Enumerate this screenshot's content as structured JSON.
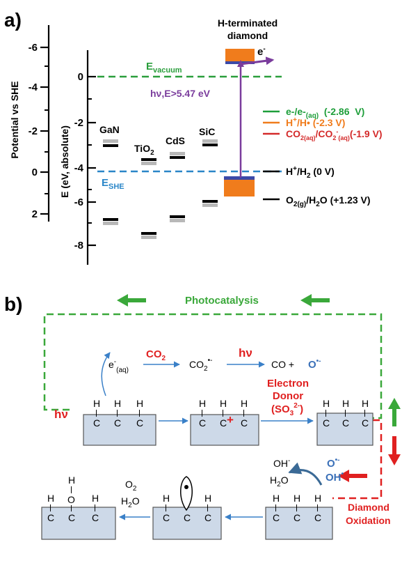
{
  "panel_a": {
    "label": "a)",
    "left_axis_title": "Potential vs SHE",
    "left_axis_ticks": [
      "-6",
      "-4",
      "-2",
      "0",
      "2"
    ],
    "right_axis_title": "E (eV, absolute)",
    "right_axis_ticks": [
      "0",
      "-2",
      "-4",
      "-6",
      "-8"
    ],
    "evacuum": {
      "main": "E",
      "sub": "vacuum"
    },
    "eshe": {
      "main": "E",
      "sub": "SHE"
    },
    "diamond_title_line1": "H-terminated",
    "diamond_title_line2": "diamond",
    "electron": {
      "main": "e",
      "sup": "-"
    },
    "excitation": "hν,E>5.47 eV",
    "materials": [
      "GaN",
      "TiO2",
      "CdS",
      "SiC"
    ],
    "tio2": {
      "main": "TiO",
      "sub": "2"
    },
    "legend": [
      {
        "text": "e-/e-(aq)  (-2.86  V)",
        "color": "#1e9e3a"
      },
      {
        "text": "H+/H• (-2.3 V)",
        "color": "#f07c1c"
      },
      {
        "text": "CO2(aq)/CO2-(aq)(-1.9 V)",
        "color": "#d42a2a"
      }
    ],
    "legend_e": {
      "a": "e-/e-",
      "sub": "(aq)",
      "b": "  (-2.86  V)"
    },
    "legend_h": {
      "a": "H",
      "sup": "+",
      "b": "/H• (-2.3 V)"
    },
    "legend_co2": {
      "a": "CO",
      "s1": "2(aq)",
      "b": "/CO",
      "s2": "2",
      "sup": "-",
      "s3": "(aq)",
      "c": "(-1.9 V)"
    },
    "hplus": {
      "a": "H",
      "sup": "+",
      "b": "/H",
      "sub": "2",
      "c": " (0 V)"
    },
    "o2": {
      "a": "O",
      "sub": "2(g)",
      "b": "/H",
      "sub2": "2",
      "c": "O (+1.23 V)"
    },
    "colors": {
      "green": "#2a9e3c",
      "blue": "#2a86c8",
      "purple": "#7a3c9c",
      "orange": "#f07c1c",
      "red": "#e02020",
      "box": "#cdd9e8"
    }
  },
  "panel_b": {
    "label": "b)",
    "photocatalysis": "Photocatalysis",
    "hv": "hν",
    "eaq": {
      "main": "e",
      "sup": "-",
      "sub": "(aq)"
    },
    "co2": {
      "main": "CO",
      "sub": "2"
    },
    "co2minus": {
      "main": "CO",
      "sub": "2",
      "sup": "•-"
    },
    "co": "CO +",
    "o_radical": {
      "main": "O",
      "sup": "•-"
    },
    "electron_donor_1": "Electron",
    "electron_donor_2": "Donor",
    "electron_donor_3": {
      "a": "(SO",
      "sub": "3",
      "sup": "2-",
      "b": ")"
    },
    "ohminus": {
      "main": "OH",
      "sup": "-"
    },
    "h2o": {
      "main": "H",
      "sub": "2",
      "b": "O"
    },
    "o_radical2": {
      "main": "O",
      "sup": "•-"
    },
    "oh_radical": {
      "main": "OH",
      "sup": "•"
    },
    "o2": {
      "main": "O",
      "sub": "2"
    },
    "h2o_2": {
      "main": "H",
      "sub": "2",
      "b": "O"
    },
    "diamond_oxidation_1": "Diamond",
    "diamond_oxidation_2": "Oxidation",
    "H": "H",
    "C": "C",
    "O": "O",
    "plus": "+"
  }
}
